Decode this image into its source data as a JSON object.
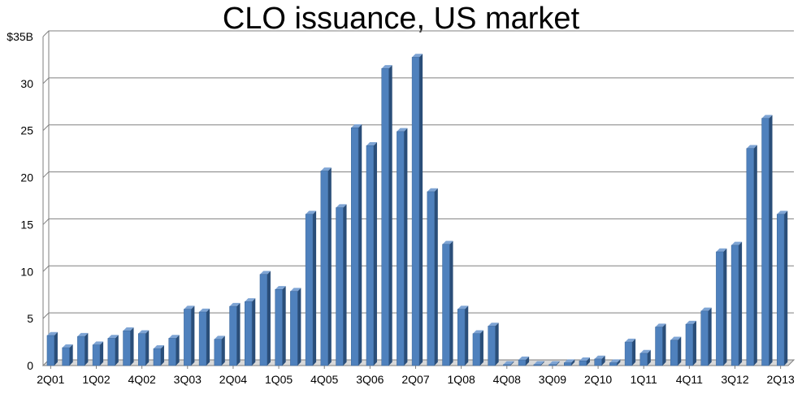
{
  "chart_data": {
    "type": "bar",
    "title": "CLO issuance, US market",
    "xlabel": "",
    "ylabel": "",
    "ylim": [
      0,
      35
    ],
    "grid": true,
    "y_ticks": [
      {
        "value": 0,
        "label": "0"
      },
      {
        "value": 5,
        "label": "5"
      },
      {
        "value": 10,
        "label": "10"
      },
      {
        "value": 15,
        "label": "15"
      },
      {
        "value": 20,
        "label": "20"
      },
      {
        "value": 25,
        "label": "25"
      },
      {
        "value": 30,
        "label": "30"
      },
      {
        "value": 35,
        "label": "$35B"
      }
    ],
    "x_ticks": [
      {
        "index": 0,
        "label": "2Q01"
      },
      {
        "index": 3,
        "label": "1Q02"
      },
      {
        "index": 6,
        "label": "4Q02"
      },
      {
        "index": 9,
        "label": "3Q03"
      },
      {
        "index": 12,
        "label": "2Q04"
      },
      {
        "index": 15,
        "label": "1Q05"
      },
      {
        "index": 18,
        "label": "4Q05"
      },
      {
        "index": 21,
        "label": "3Q06"
      },
      {
        "index": 24,
        "label": "2Q07"
      },
      {
        "index": 27,
        "label": "1Q08"
      },
      {
        "index": 30,
        "label": "4Q08"
      },
      {
        "index": 33,
        "label": "3Q09"
      },
      {
        "index": 36,
        "label": "2Q10"
      },
      {
        "index": 39,
        "label": "1Q11"
      },
      {
        "index": 42,
        "label": "4Q11"
      },
      {
        "index": 45,
        "label": "3Q12"
      },
      {
        "index": 48,
        "label": "2Q13"
      }
    ],
    "categories": [
      "2Q01",
      "3Q01",
      "4Q01",
      "1Q02",
      "2Q02",
      "3Q02",
      "4Q02",
      "1Q03",
      "2Q03",
      "3Q03",
      "4Q03",
      "1Q04",
      "2Q04",
      "3Q04",
      "4Q04",
      "1Q05",
      "2Q05",
      "3Q05",
      "4Q05",
      "1Q06",
      "2Q06",
      "3Q06",
      "4Q06",
      "1Q07",
      "2Q07",
      "3Q07",
      "4Q07",
      "1Q08",
      "2Q08",
      "3Q08",
      "4Q08",
      "1Q09",
      "2Q09",
      "3Q09",
      "4Q09",
      "1Q10",
      "2Q10",
      "3Q10",
      "4Q10",
      "1Q11",
      "2Q11",
      "3Q11",
      "4Q11",
      "1Q12",
      "2Q12",
      "3Q12",
      "4Q12",
      "1Q13",
      "2Q13"
    ],
    "values": [
      3.2,
      1.9,
      3.1,
      2.2,
      2.9,
      3.7,
      3.4,
      1.8,
      2.9,
      6.0,
      5.7,
      2.8,
      6.3,
      6.8,
      9.7,
      8.1,
      7.9,
      16.1,
      20.7,
      16.8,
      25.3,
      23.4,
      31.6,
      24.9,
      32.8,
      18.5,
      12.9,
      6.0,
      3.4,
      4.2,
      0.1,
      0.6,
      0.1,
      0.1,
      0.3,
      0.5,
      0.7,
      0.3,
      2.5,
      1.3,
      4.1,
      2.7,
      4.4,
      5.8,
      12.1,
      12.8,
      23.1,
      26.3,
      16.1
    ],
    "colors": {
      "bar_front": "#4f81bd",
      "bar_side": "#2a4e79",
      "bar_top": "#7ea4d4",
      "grid": "#808080",
      "axis": "#7f7f7f",
      "floor": "#d9d9d9"
    }
  }
}
